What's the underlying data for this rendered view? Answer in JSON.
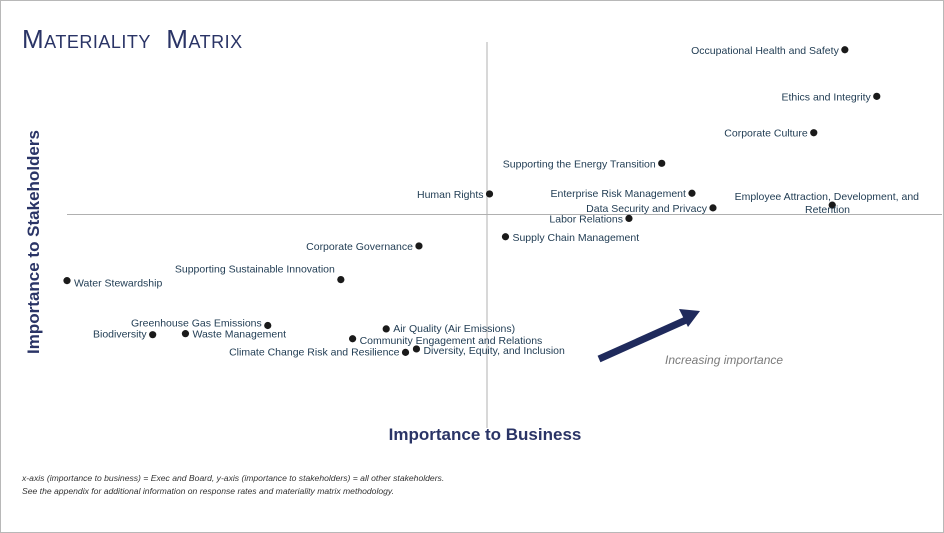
{
  "title": "Materiality  Matrix",
  "colors": {
    "axis_title": "#2a3466",
    "point": "#1a1a1a",
    "label": "#1f3b52",
    "arrow": "#1f2a5c",
    "quadrant_lines": "#b0b0b0"
  },
  "footnote": {
    "line1": "x-axis (importance to business) = Exec and Board, y-axis (importance to stakeholders) = all other stakeholders.",
    "line2": "See the appendix for additional information on response rates and materiality matrix methodology."
  },
  "chart_data": {
    "type": "scatter",
    "title": "Materiality  Matrix",
    "xlabel": "Importance to Business",
    "ylabel": "Importance to Stakeholders",
    "xlim": [
      0,
      100
    ],
    "ylim": [
      0,
      100
    ],
    "grid": false,
    "quadrant_lines": {
      "x": 50,
      "y": 50
    },
    "annotation": {
      "text": "Increasing importance",
      "direction": "up-right"
    },
    "points": [
      {
        "label": "Occupational Health and Safety",
        "x": 92.6,
        "y": 98.6
      },
      {
        "label": "Ethics and Integrity",
        "x": 96.4,
        "y": 84.9
      },
      {
        "label": "Corporate Culture",
        "x": 88.9,
        "y": 74.2
      },
      {
        "label": "Supporting the Energy Transition",
        "x": 70.8,
        "y": 65.2
      },
      {
        "label": "Employee Attraction, Development, and Retention",
        "x": 91.1,
        "y": 52.9
      },
      {
        "label": "Human Rights",
        "x": 50.3,
        "y": 56.2
      },
      {
        "label": "Enterprise Risk Management",
        "x": 74.4,
        "y": 56.4
      },
      {
        "label": "Data Security and Privacy",
        "x": 76.9,
        "y": 52.1
      },
      {
        "label": "Labor Relations",
        "x": 66.9,
        "y": 49.0
      },
      {
        "label": "Supply Chain Management",
        "x": 52.2,
        "y": 43.6
      },
      {
        "label": "Corporate Governance",
        "x": 41.9,
        "y": 40.9
      },
      {
        "label": "Supporting Sustainable Innovation",
        "x": 32.6,
        "y": 31.0
      },
      {
        "label": "Water Stewardship",
        "x": 0.0,
        "y": 30.7
      },
      {
        "label": "Greenhouse Gas Emissions",
        "x": 23.9,
        "y": 17.5
      },
      {
        "label": "Waste Management",
        "x": 14.1,
        "y": 15.1
      },
      {
        "label": "Biodiversity",
        "x": 10.2,
        "y": 14.8
      },
      {
        "label": "Air Quality (Air Emissions)",
        "x": 38.0,
        "y": 16.5
      },
      {
        "label": "Community Engagement and Relations",
        "x": 34.0,
        "y": 13.6
      },
      {
        "label": "Climate Change Risk and Resilience",
        "x": 40.3,
        "y": 9.6
      },
      {
        "label": "Diversity, Equity, and Inclusion",
        "x": 41.6,
        "y": 10.6
      }
    ]
  }
}
